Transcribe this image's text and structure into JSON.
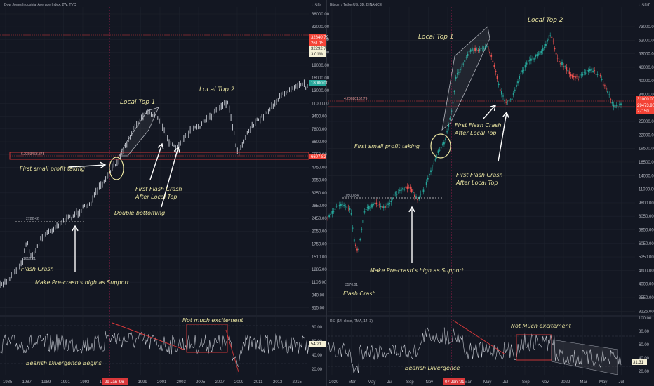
{
  "colors": {
    "bg": "#131722",
    "panel": "#161a25",
    "grid": "#1e222d",
    "up": "#26a69a",
    "down": "#ef5350",
    "line": "#cfd3db",
    "accent": "#e8e3a0",
    "red": "#d9383a",
    "rsi": "#c8ccd4"
  },
  "left": {
    "header": "Dow Jones Industrial Average Index, 2W, TVC",
    "currency": "USD",
    "price_ticks": [
      "38000.00",
      "32000.00",
      "27000.00",
      "22000.00",
      "19000.00",
      "16000.00",
      "13000.00",
      "11000.00",
      "9400.00",
      "7800.00",
      "6600.00",
      "5550.00",
      "4750.00",
      "3950.00",
      "3250.00",
      "2850.00",
      "2450.00",
      "2050.00",
      "1750.00",
      "1510.00",
      "1285.00",
      "1105.00",
      "940.00",
      "815.00"
    ],
    "price_badges": {
      "current": "18000.00",
      "level": "6607.82",
      "stack": [
        "32840.79",
        "261.15",
        "32292.78",
        "3.01%"
      ]
    },
    "level_label": "6.2303463.875",
    "prev_high_label": "2722.42",
    "crash_low_label": "1616.21",
    "rsi_ticks": [
      "80.00",
      "60.00",
      "40.00",
      "20.00"
    ],
    "rsi_badge": "54.21",
    "time_ticks": [
      "1985",
      "1987",
      "1989",
      "1991",
      "1993",
      "1995",
      "1997",
      "1999",
      "2001",
      "2003",
      "2005",
      "2007",
      "2009",
      "2011",
      "2013",
      "2015"
    ],
    "date_badge": "29 Jan '96",
    "annotations": {
      "local_top_1": "Local Top 1",
      "local_top_2": "Local Top 2",
      "first_profit": "First small profit taking",
      "flash_crash_after_1": "First Flash Crash",
      "flash_crash_after_2": "After Local Top",
      "double_bottom": "Double bottoming",
      "flash_crash": "Flash Crash",
      "make_support": "Make Pre-crash's high as Support",
      "bearish": "Bearish Divergence Begins",
      "not_much": "Not much excitement"
    }
  },
  "right": {
    "header": "Bitcoin / TetherUS, 3D, BINANCE",
    "currency": "USDT",
    "price_ticks": [
      "73000.00",
      "62000.00",
      "53000.00",
      "46000.00",
      "40000.00",
      "34000.00",
      "29000.00",
      "25000.00",
      "22000.00",
      "19500.00",
      "16500.00",
      "14000.00",
      "11000.00",
      "9800.00",
      "8050.00",
      "6850.00",
      "6050.00",
      "5250.00",
      "4600.00",
      "4000.00",
      "3550.00",
      "3125.00"
    ],
    "price_badges": {
      "level": "31000.00",
      "stack": [
        "29473.90",
        "27150"
      ]
    },
    "level_label": "4.20020152.79",
    "prev_high_label": "10500.84",
    "crash_low_label": "3570.01",
    "rsi_header": "RSI (14, close, RMA, 14, 3)",
    "rsi_ticks": [
      "100.00",
      "80.00",
      "60.00",
      "40.00",
      "20.00"
    ],
    "rsi_badge": "31.31",
    "time_ticks": [
      "2020",
      "Mar",
      "May",
      "Jul",
      "Sep",
      "Nov",
      "2021",
      "Mar",
      "May",
      "Jul",
      "Sep",
      "Nov",
      "2022",
      "Mar",
      "May",
      "Jul"
    ],
    "date_badge": "07 Jan '21",
    "annotations": {
      "local_top_1": "Local Top 1",
      "local_top_2": "Local Top 2",
      "first_profit": "First small profit taking",
      "flash_a1": "First Flash Crash",
      "flash_a2": "After Local Top",
      "flash_b1": "First Flash Crash",
      "flash_b2": "After Local Top",
      "flash_crash": "Flash Crash",
      "make_support": "Make Pre-crash's high as Support",
      "bearish": "Bearish Divergence",
      "not_much": "Not Much excitement"
    }
  },
  "chart_data": [
    {
      "type": "candlestick",
      "title": "Dow Jones Industrial Average Index, 2W, TVC",
      "x_range": [
        "1985",
        "2016"
      ],
      "scale": "log",
      "points": [
        [
          "1985",
          1250
        ],
        [
          "1987 Aug",
          2720
        ],
        [
          "1987 Oct",
          1760
        ],
        [
          "1989",
          2700
        ],
        [
          "1991",
          2900
        ],
        [
          "1993",
          3500
        ],
        [
          "1995",
          4500
        ],
        [
          "1996 Jan",
          5400
        ],
        [
          "1997",
          7000
        ],
        [
          "1998 Aug",
          9400
        ],
        [
          "1998 Oct",
          7600
        ],
        [
          "1999",
          10500
        ],
        [
          "2000",
          11700
        ],
        [
          "2001",
          9500
        ],
        [
          "2002",
          7500
        ],
        [
          "2003",
          9000
        ],
        [
          "2005",
          10500
        ],
        [
          "2007",
          14000
        ],
        [
          "2009",
          6600
        ],
        [
          "2011",
          12000
        ],
        [
          "2013",
          15000
        ],
        [
          "2015",
          18000
        ]
      ],
      "levels": [
        6607.82,
        2722.42
      ],
      "rsi_range": [
        20,
        80
      ]
    },
    {
      "type": "candlestick",
      "title": "Bitcoin / TetherUS, 3D, BINANCE",
      "x_range": [
        "2020",
        "Jul 2022"
      ],
      "scale": "log",
      "points": [
        [
          "2020 Jan",
          7200
        ],
        [
          "2020 Feb",
          10500
        ],
        [
          "2020 Mar",
          3800
        ],
        [
          "2020 May",
          9500
        ],
        [
          "2020 Jul",
          9200
        ],
        [
          "2020 Aug",
          12000
        ],
        [
          "2020 Sep",
          10300
        ],
        [
          "2020 Nov",
          18500
        ],
        [
          "2021 Jan",
          40000
        ],
        [
          "2021 Feb",
          57000
        ],
        [
          "2021 Apr",
          64000
        ],
        [
          "2021 May",
          37000
        ],
        [
          "2021 Jul",
          30000
        ],
        [
          "2021 Sep",
          48000
        ],
        [
          "2021 Nov",
          69000
        ],
        [
          "2022 Jan",
          36000
        ],
        [
          "2022 Mar",
          47000
        ],
        [
          "2022 May",
          29500
        ],
        [
          "2022 Jun",
          20000
        ]
      ],
      "levels": [
        31000,
        10500.84
      ],
      "rsi_range": [
        20,
        100
      ]
    }
  ]
}
